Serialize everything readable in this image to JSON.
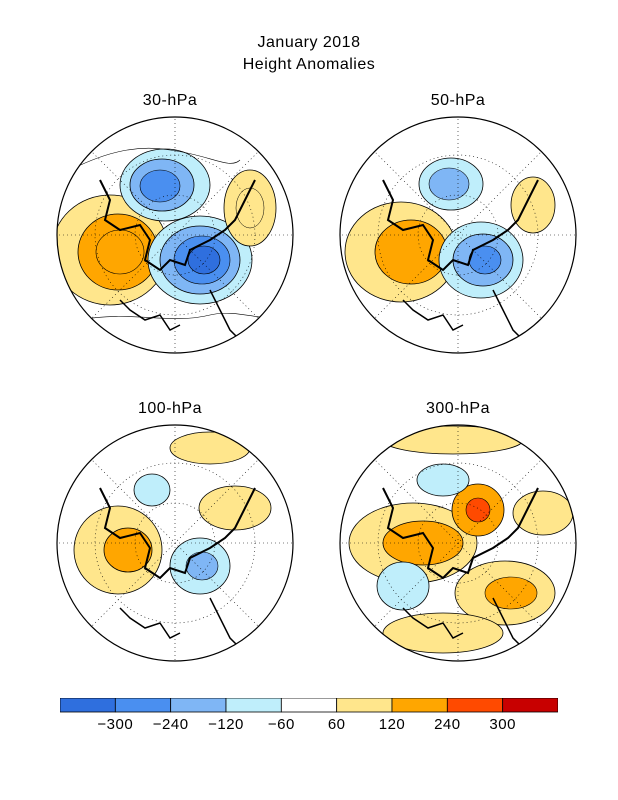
{
  "figure": {
    "title_line1": "January 2018",
    "title_line2": "Height Anomalies"
  },
  "panels": [
    {
      "label": "30-hPa"
    },
    {
      "label": "50-hPa"
    },
    {
      "label": "100-hPa"
    },
    {
      "label": "300-hPa"
    }
  ],
  "colorbar": {
    "colors": [
      "#2f6fde",
      "#4a8ff0",
      "#7fb6f5",
      "#bfeefb",
      "#ffffff",
      "#ffe68c",
      "#ffa600",
      "#ff4a00",
      "#c80000"
    ],
    "labels": [
      "-300",
      "-240",
      "-120",
      "-60",
      "60",
      "120",
      "240",
      "300"
    ]
  }
}
